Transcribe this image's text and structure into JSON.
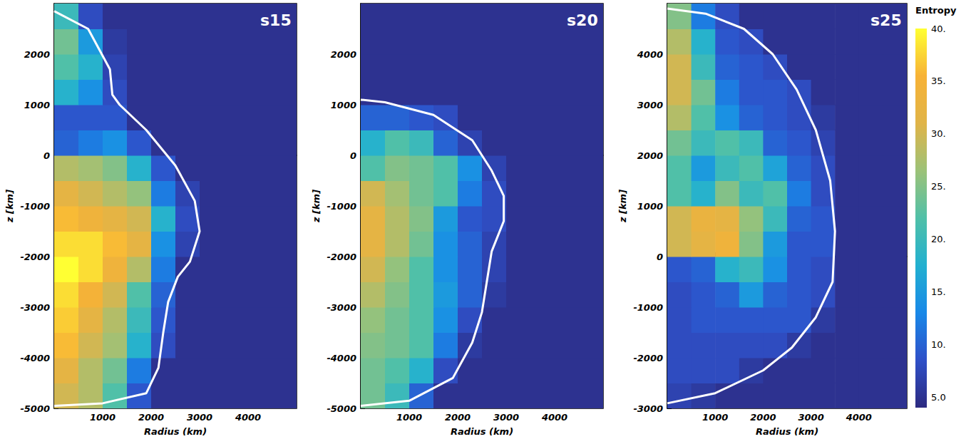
{
  "chart_data": [
    {
      "type": "heatmap",
      "title": "s15",
      "xlabel": "Radius (km)",
      "ylabel": "z [km]",
      "xlim": [
        0,
        5000
      ],
      "ylim": [
        -5000,
        3000
      ],
      "xticks": [
        1000,
        2000,
        3000,
        4000
      ],
      "yticks": [
        -5000,
        -4000,
        -3000,
        -2000,
        -1000,
        0,
        1000,
        2000
      ],
      "x": [
        250,
        750,
        1250,
        1750,
        2250,
        2750,
        3250,
        3750,
        4250,
        4750
      ],
      "y": [
        -4750,
        -4250,
        -3750,
        -3250,
        -2750,
        -2250,
        -1750,
        -1250,
        -750,
        -250,
        250,
        750,
        1250,
        1750,
        2250,
        2750
      ],
      "values": [
        [
          30,
          28,
          22,
          9,
          5,
          5,
          5,
          5,
          5,
          5
        ],
        [
          32,
          28,
          24,
          12,
          5,
          5,
          5,
          5,
          5,
          5
        ],
        [
          36,
          30,
          27,
          18,
          8,
          5,
          5,
          5,
          5,
          5
        ],
        [
          37,
          32,
          28,
          20,
          9,
          5,
          5,
          5,
          5,
          5
        ],
        [
          38,
          35,
          30,
          22,
          10,
          5,
          5,
          5,
          5,
          5
        ],
        [
          40,
          38,
          34,
          28,
          12,
          5,
          5,
          5,
          5,
          5
        ],
        [
          38,
          38,
          36,
          32,
          14,
          7,
          5,
          5,
          5,
          5
        ],
        [
          36,
          34,
          32,
          30,
          18,
          8,
          5,
          5,
          5,
          5
        ],
        [
          32,
          30,
          28,
          26,
          12,
          7,
          5,
          5,
          5,
          5
        ],
        [
          28,
          27,
          25,
          18,
          9,
          5,
          5,
          5,
          5,
          5
        ],
        [
          10,
          12,
          14,
          9,
          5,
          5,
          5,
          5,
          5,
          5
        ],
        [
          9,
          9,
          9,
          5,
          5,
          5,
          5,
          5,
          5,
          5
        ],
        [
          18,
          14,
          8,
          5,
          5,
          5,
          5,
          5,
          5,
          5
        ],
        [
          22,
          18,
          7,
          5,
          5,
          5,
          5,
          5,
          5,
          5
        ],
        [
          24,
          15,
          6,
          5,
          5,
          5,
          5,
          5,
          5,
          5
        ],
        [
          20,
          8,
          5,
          5,
          5,
          5,
          5,
          5,
          5,
          5
        ]
      ],
      "shock": {
        "x": [
          0,
          700,
          1150,
          1200,
          1350,
          1900,
          2500,
          2900,
          3000,
          2800,
          2550,
          2350,
          2250,
          2150,
          1900,
          1000,
          0
        ],
        "y": [
          2850,
          2500,
          1700,
          1200,
          1000,
          500,
          -200,
          -900,
          -1500,
          -2100,
          -2400,
          -2900,
          -3500,
          -4200,
          -4700,
          -4900,
          -4950
        ],
        "color": "#ffffff"
      }
    },
    {
      "type": "heatmap",
      "title": "s20",
      "xlabel": "Radius (km)",
      "ylabel": "z [km]",
      "xlim": [
        0,
        5000
      ],
      "ylim": [
        -5000,
        3000
      ],
      "xticks": [
        1000,
        2000,
        3000,
        4000
      ],
      "yticks": [
        -5000,
        -4000,
        -3000,
        -2000,
        -1000,
        0,
        1000,
        2000
      ],
      "x": [
        250,
        750,
        1250,
        1750,
        2250,
        2750,
        3250,
        3750,
        4250,
        4750
      ],
      "y": [
        -4750,
        -4250,
        -3750,
        -3250,
        -2750,
        -2250,
        -1750,
        -1250,
        -750,
        -250,
        250,
        750,
        1250,
        1750,
        2250,
        2750
      ],
      "values": [
        [
          24,
          20,
          10,
          5,
          5,
          5,
          5,
          5,
          5,
          5
        ],
        [
          24,
          22,
          18,
          8,
          5,
          5,
          5,
          5,
          5,
          5
        ],
        [
          25,
          24,
          22,
          12,
          6,
          5,
          5,
          5,
          5,
          5
        ],
        [
          26,
          24,
          22,
          14,
          8,
          5,
          5,
          5,
          5,
          5
        ],
        [
          28,
          25,
          22,
          15,
          10,
          6,
          5,
          5,
          5,
          5
        ],
        [
          30,
          26,
          22,
          14,
          10,
          7,
          5,
          5,
          5,
          5
        ],
        [
          32,
          28,
          24,
          14,
          10,
          7,
          5,
          5,
          5,
          5
        ],
        [
          32,
          28,
          25,
          15,
          9,
          8,
          5,
          5,
          5,
          5
        ],
        [
          30,
          27,
          24,
          22,
          12,
          8,
          5,
          5,
          5,
          5
        ],
        [
          22,
          25,
          24,
          22,
          14,
          7,
          5,
          5,
          5,
          5
        ],
        [
          18,
          22,
          20,
          10,
          7,
          5,
          5,
          5,
          5,
          5
        ],
        [
          10,
          10,
          9,
          8,
          5,
          5,
          5,
          5,
          5,
          5
        ],
        [
          5,
          5,
          5,
          5,
          5,
          5,
          5,
          5,
          5,
          5
        ],
        [
          5,
          5,
          5,
          5,
          5,
          5,
          5,
          5,
          5,
          5
        ],
        [
          5,
          5,
          5,
          5,
          5,
          5,
          5,
          5,
          5,
          5
        ],
        [
          5,
          5,
          5,
          5,
          5,
          5,
          5,
          5,
          5,
          5
        ]
      ],
      "shock": {
        "x": [
          0,
          500,
          1500,
          2300,
          2700,
          2950,
          2950,
          2700,
          2600,
          2500,
          2300,
          1900,
          1000,
          0
        ],
        "y": [
          1100,
          1050,
          800,
          300,
          -300,
          -800,
          -1300,
          -1900,
          -2500,
          -3100,
          -3700,
          -4400,
          -4850,
          -4950
        ],
        "color": "#ffffff"
      }
    },
    {
      "type": "heatmap",
      "title": "s25",
      "xlabel": "Radius (km)",
      "ylabel": "z [km]",
      "xlim": [
        0,
        5000
      ],
      "ylim": [
        -3000,
        5000
      ],
      "xticks": [
        1000,
        2000,
        3000,
        4000
      ],
      "yticks": [
        -3000,
        -2000,
        -1000,
        0,
        1000,
        2000,
        3000,
        4000
      ],
      "x": [
        250,
        750,
        1250,
        1750,
        2250,
        2750,
        3250,
        3750,
        4250,
        4750
      ],
      "y": [
        -2750,
        -2250,
        -1750,
        -1250,
        -750,
        -250,
        250,
        750,
        1250,
        1750,
        2250,
        2750,
        3250,
        3750,
        4250,
        4750
      ],
      "values": [
        [
          7,
          6,
          5,
          5,
          5,
          5,
          5,
          5,
          5,
          5
        ],
        [
          8,
          8,
          8,
          6,
          5,
          5,
          5,
          5,
          5,
          5
        ],
        [
          8,
          8,
          8,
          8,
          8,
          6,
          5,
          5,
          5,
          5
        ],
        [
          8,
          9,
          9,
          9,
          9,
          9,
          6,
          5,
          5,
          5
        ],
        [
          8,
          9,
          10,
          15,
          10,
          9,
          8,
          5,
          5,
          5
        ],
        [
          9,
          10,
          18,
          20,
          14,
          9,
          8,
          5,
          5,
          5
        ],
        [
          30,
          32,
          34,
          25,
          15,
          9,
          9,
          5,
          5,
          5
        ],
        [
          30,
          33,
          32,
          26,
          20,
          10,
          9,
          5,
          5,
          5
        ],
        [
          22,
          18,
          25,
          20,
          22,
          12,
          8,
          5,
          5,
          5
        ],
        [
          22,
          15,
          20,
          22,
          16,
          10,
          8,
          5,
          5,
          5
        ],
        [
          24,
          20,
          22,
          20,
          10,
          9,
          7,
          5,
          5,
          5
        ],
        [
          28,
          22,
          14,
          10,
          9,
          8,
          6,
          5,
          5,
          5
        ],
        [
          30,
          24,
          12,
          9,
          9,
          8,
          5,
          5,
          5,
          5
        ],
        [
          30,
          20,
          10,
          9,
          8,
          5,
          5,
          5,
          5,
          5
        ],
        [
          28,
          18,
          9,
          8,
          5,
          5,
          5,
          5,
          5,
          5
        ],
        [
          25,
          12,
          8,
          5,
          5,
          5,
          5,
          5,
          5,
          5
        ]
      ],
      "shock": {
        "x": [
          0,
          800,
          1600,
          2200,
          2700,
          3100,
          3400,
          3500,
          3450,
          3100,
          2600,
          2000,
          1000,
          0
        ],
        "y": [
          4900,
          4800,
          4500,
          4000,
          3300,
          2500,
          1500,
          500,
          -500,
          -1200,
          -1800,
          -2250,
          -2700,
          -2900
        ],
        "color": "#ffffff"
      },
      "colorbar": {
        "title": "Entropy",
        "range": [
          4,
          40
        ],
        "ticks": [
          {
            "value": 5,
            "label": "5.0"
          },
          {
            "value": 10,
            "label": "10."
          },
          {
            "value": 15,
            "label": "15."
          },
          {
            "value": 20,
            "label": "20."
          },
          {
            "value": 25,
            "label": "25."
          },
          {
            "value": 30,
            "label": "30."
          },
          {
            "value": 35,
            "label": "35."
          },
          {
            "value": 40,
            "label": "40."
          }
        ],
        "colors": [
          "#2c2a80",
          "#2f50c8",
          "#1888e8",
          "#22b0d0",
          "#50c0a8",
          "#9cc278",
          "#e0b448",
          "#f7b236",
          "#ffff33"
        ]
      }
    }
  ]
}
